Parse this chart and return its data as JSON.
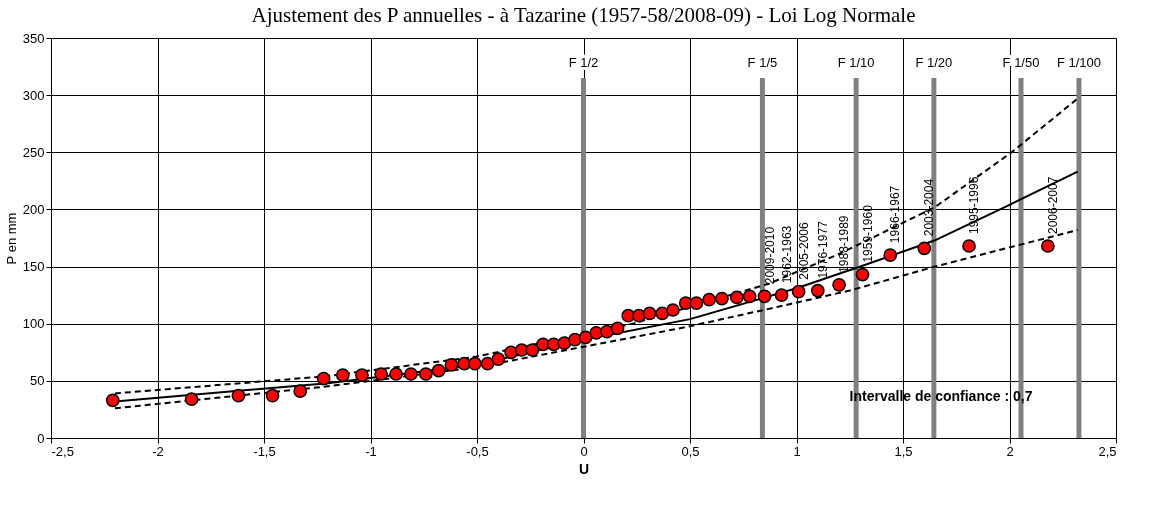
{
  "chart_data": {
    "type": "scatter",
    "title": "Ajustement des P  annuelles  - à Tazarine (1957-58/2008-09)  - Loi Log Normale",
    "xlabel": "U",
    "ylabel": "P en mm",
    "xlim": [
      -2.5,
      2.5
    ],
    "xticks": [
      {
        "value": -2.5,
        "label": "-2,5"
      },
      -2,
      {
        "value": -1.5,
        "label": "-1,5"
      },
      -1,
      {
        "value": -0.5,
        "label": "-0,5"
      },
      0,
      {
        "value": 0.5,
        "label": "0,5"
      },
      1,
      {
        "value": 1.5,
        "label": "1,5"
      },
      2,
      {
        "value": 2.5,
        "label": "2,5"
      }
    ],
    "ylim": [
      0,
      350
    ],
    "yticks": [
      0,
      50,
      100,
      150,
      200,
      250,
      300,
      350
    ],
    "grid": true,
    "marker": "circle",
    "series": [
      {
        "type": "line",
        "color": "#000000",
        "line_style": "solid",
        "marker": "none",
        "x": [
          -2.2,
          -1.2,
          -0.5,
          0,
          0.5,
          1.0,
          1.3,
          1.65,
          2.0,
          2.32
        ],
        "values": [
          32,
          48,
          64,
          86,
          104,
          131,
          150,
          173,
          204,
          233
        ]
      },
      {
        "type": "line",
        "color": "#000000",
        "line_style": "dashed",
        "marker": "none",
        "x": [
          -2.2,
          -1.21,
          -0.51,
          0.23,
          0.87,
          1.2,
          1.65,
          2.01,
          2.32
        ],
        "values": [
          39,
          54,
          71,
          100,
          135,
          161,
          202,
          250,
          297
        ]
      },
      {
        "type": "line",
        "color": "#000000",
        "line_style": "dashed",
        "marker": "none",
        "x": [
          -2.2,
          -1.21,
          -0.5,
          -0.05,
          0.48,
          0.87,
          1.25,
          1.65,
          2.32
        ],
        "values": [
          26,
          45,
          62,
          78,
          97,
          113,
          129,
          150,
          182
        ]
      },
      {
        "color": "#ff0000",
        "x": [
          -2.21,
          -1.84,
          -1.62,
          -1.46,
          -1.33,
          -1.22,
          -1.13,
          -1.04,
          -0.95,
          -0.88,
          -0.81,
          -0.74,
          -0.68,
          -0.62,
          -0.56,
          -0.51,
          -0.45,
          -0.4,
          -0.34,
          -0.29,
          -0.24,
          -0.19,
          -0.14,
          -0.09,
          -0.04,
          0.01,
          0.06,
          0.11,
          0.16,
          0.21,
          0.26,
          0.31,
          0.37,
          0.42,
          0.48,
          0.53,
          0.59,
          0.65,
          0.72,
          0.78,
          0.85,
          0.93,
          1.01,
          1.1,
          1.2,
          1.31,
          1.44,
          1.6,
          1.81,
          2.18
        ],
        "values": [
          33,
          34,
          37,
          37,
          41,
          52,
          55,
          55,
          56,
          56,
          56,
          56,
          59,
          64,
          65,
          65,
          65,
          69,
          75,
          77,
          77,
          82,
          82,
          83,
          86,
          88,
          92,
          93,
          96,
          107,
          107,
          109,
          109,
          112,
          118,
          118,
          121,
          122,
          123,
          124,
          124,
          125,
          128,
          129,
          134,
          143,
          160,
          166,
          168,
          168
        ]
      }
    ],
    "ref_lines": [
      {
        "axis": "x",
        "value": 0,
        "label": "F 1/2",
        "color": "#808080"
      },
      {
        "axis": "x",
        "value": 0.84,
        "label": "F 1/5",
        "color": "#808080"
      },
      {
        "axis": "x",
        "value": 1.28,
        "label": "F 1/10",
        "color": "#808080"
      },
      {
        "axis": "x",
        "value": 1.645,
        "label": "F 1/20",
        "color": "#808080"
      },
      {
        "axis": "x",
        "value": 2.054,
        "label": "F 1/50",
        "color": "#808080"
      },
      {
        "axis": "x",
        "value": 2.326,
        "label": "F 1/100",
        "color": "#808080"
      }
    ],
    "annotations": [
      {
        "text": "2009-2010",
        "x": 0.85,
        "y": 124
      },
      {
        "text": "1962-1963",
        "x": 0.93,
        "y": 125
      },
      {
        "text": "2005-2006",
        "x": 1.01,
        "y": 128
      },
      {
        "text": "1976-1977",
        "x": 1.1,
        "y": 129
      },
      {
        "text": "1988-1989",
        "x": 1.2,
        "y": 134
      },
      {
        "text": "1959-1960",
        "x": 1.31,
        "y": 143
      },
      {
        "text": "1966-1967",
        "x": 1.44,
        "y": 160
      },
      {
        "text": "2003-2004",
        "x": 1.6,
        "y": 166
      },
      {
        "text": "1995-1996",
        "x": 1.81,
        "y": 168
      },
      {
        "text": "2006-2007",
        "x": 2.18,
        "y": 168
      },
      "Intervalle de confiance : 0,7"
    ]
  }
}
